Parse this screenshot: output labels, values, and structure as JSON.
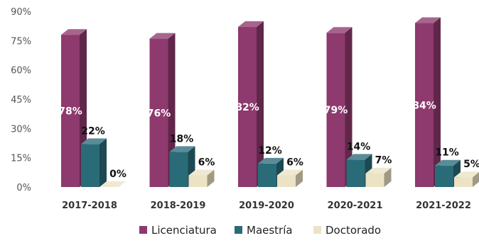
{
  "chart_data": {
    "type": "bar",
    "title": "",
    "xlabel": "",
    "ylabel": "",
    "categories": [
      "2017-2018",
      "2018-2019",
      "2019-2020",
      "2020-2021",
      "2021-2022"
    ],
    "series": [
      {
        "name": "Licenciatura",
        "values": [
          78,
          76,
          82,
          79,
          84
        ],
        "labels": [
          "78%",
          "76%",
          "82%",
          "79%",
          "84%"
        ],
        "color": "#8e3a6e"
      },
      {
        "name": "Maestría",
        "values": [
          22,
          18,
          12,
          14,
          11
        ],
        "labels": [
          "22%",
          "18%",
          "12%",
          "14%",
          "11%"
        ],
        "color": "#2a6b78"
      },
      {
        "name": "Doctorado",
        "values": [
          0,
          6,
          6,
          7,
          5
        ],
        "labels": [
          "0%",
          "6%",
          "6%",
          "7%",
          "5%"
        ],
        "color": "#ece3c4"
      }
    ],
    "ylim": [
      0,
      90
    ],
    "yticks": [
      0,
      15,
      30,
      45,
      60,
      75,
      90
    ],
    "ytick_labels": [
      "0%",
      "15%",
      "30%",
      "45%",
      "60%",
      "75%",
      "90%"
    ],
    "grid": false,
    "legend_position": "bottom-center"
  }
}
